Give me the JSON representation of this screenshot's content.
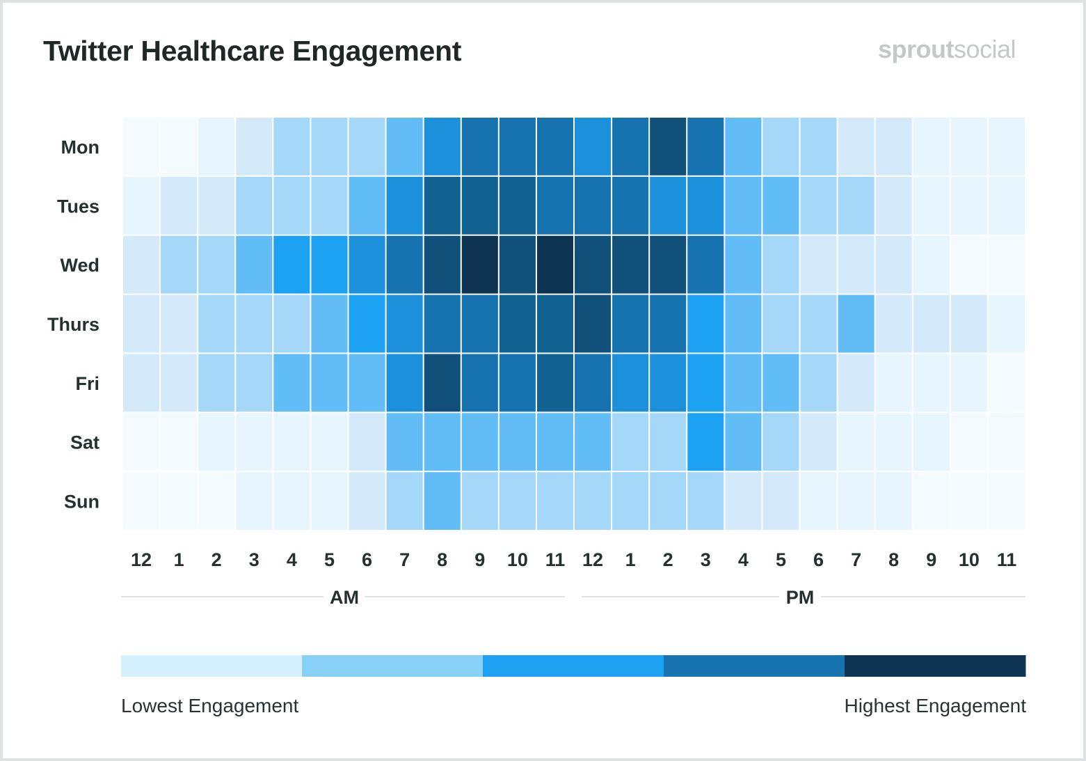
{
  "header": {
    "title": "Twitter Healthcare Engagement",
    "logo_bold": "sprout",
    "logo_light": "social"
  },
  "chart_data": {
    "type": "heatmap",
    "title": "Twitter Healthcare Engagement",
    "xlabel": "",
    "ylabel": "",
    "rows": [
      "Mon",
      "Tues",
      "Wed",
      "Thurs",
      "Fri",
      "Sat",
      "Sun"
    ],
    "columns": [
      "12",
      "1",
      "2",
      "3",
      "4",
      "5",
      "6",
      "7",
      "8",
      "9",
      "10",
      "11",
      "12",
      "1",
      "2",
      "3",
      "4",
      "5",
      "6",
      "7",
      "8",
      "9",
      "10",
      "11"
    ],
    "column_periods": [
      {
        "label": "AM",
        "start": 0,
        "end": 11
      },
      {
        "label": "PM",
        "start": 12,
        "end": 23
      }
    ],
    "value_scale": {
      "min": 0,
      "max": 10,
      "description": "relative engagement level (0 = lowest, 10 = highest)"
    },
    "level_colors": [
      "#F4FBFF",
      "#E6F5FE",
      "#D4EAFA",
      "#A5D8F8",
      "#62BCF6",
      "#1DA1F2",
      "#1D90DB",
      "#1773B0",
      "#126291",
      "#105079",
      "#0D3350"
    ],
    "values": [
      [
        0,
        0,
        1,
        2,
        3,
        3,
        3,
        4,
        6,
        7,
        7,
        7,
        6,
        7,
        9,
        7,
        4,
        3,
        3,
        2,
        2,
        1,
        1,
        1
      ],
      [
        1,
        2,
        2,
        3,
        3,
        3,
        4,
        6,
        8,
        8,
        8,
        7,
        7,
        7,
        6,
        6,
        4,
        4,
        3,
        3,
        2,
        1,
        1,
        1
      ],
      [
        2,
        3,
        3,
        4,
        5,
        5,
        6,
        7,
        9,
        10,
        9,
        10,
        9,
        9,
        9,
        7,
        4,
        3,
        2,
        2,
        2,
        1,
        0,
        0
      ],
      [
        2,
        2,
        3,
        3,
        3,
        4,
        5,
        6,
        7,
        7,
        8,
        8,
        9,
        7,
        7,
        5,
        4,
        3,
        3,
        4,
        2,
        2,
        2,
        1
      ],
      [
        2,
        2,
        3,
        3,
        4,
        4,
        4,
        6,
        9,
        7,
        7,
        8,
        7,
        6,
        6,
        5,
        4,
        4,
        3,
        2,
        1,
        1,
        1,
        0
      ],
      [
        0,
        0,
        1,
        1,
        1,
        1,
        2,
        4,
        4,
        4,
        4,
        4,
        4,
        3,
        3,
        5,
        4,
        3,
        2,
        1,
        1,
        1,
        0,
        0
      ],
      [
        0,
        0,
        0,
        1,
        1,
        1,
        2,
        3,
        4,
        3,
        3,
        3,
        3,
        3,
        3,
        3,
        2,
        2,
        1,
        1,
        1,
        0,
        0,
        0
      ]
    ],
    "legend": {
      "position": "bottom",
      "colors": [
        "#D4F0FD",
        "#88D0F6",
        "#1DA1F2",
        "#1874B0",
        "#0D3450"
      ],
      "low_label": "Lowest Engagement",
      "high_label": "Highest Engagement"
    },
    "grid": false
  }
}
